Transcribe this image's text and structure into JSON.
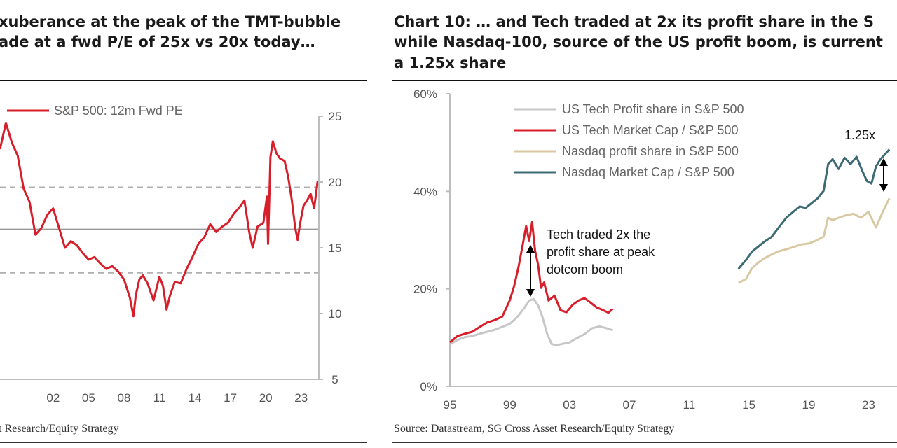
{
  "left_panel": {
    "title_lines": [
      "xuberance at the peak of the TMT-bubble",
      "ade at a fwd P/E of 25x vs 20x today…"
    ],
    "source": "t Research/Equity Strategy"
  },
  "right_panel": {
    "title_lines": [
      "Chart 10: … and Tech traded at 2x its profit share in the S",
      "while Nasdaq-100, source of the US profit boom, is current",
      "a 1.25x share"
    ],
    "source": "Source: Datastream, SG Cross Asset Research/Equity Strategy"
  },
  "chart_data": [
    {
      "type": "line",
      "legend": [
        "S&P 500: 12m Fwd PE"
      ],
      "x_ticks": [
        "02",
        "05",
        "08",
        "11",
        "14",
        "17",
        "20",
        "23"
      ],
      "y_ticks": [
        "25",
        "20",
        "15",
        "10",
        "5"
      ],
      "ylim": [
        5,
        25
      ],
      "xlim": [
        1997.5,
        2024.5
      ],
      "reference_lines": {
        "mean": 16.4,
        "upper": 19.6,
        "lower": 13.1
      },
      "colors": {
        "series": "#d71f2b",
        "mean": "#9a9a9a",
        "band": "#b0b0b0"
      },
      "series": [
        {
          "name": "S&P 500: 12m Fwd PE",
          "x": [
            1997.5,
            1998.0,
            1998.5,
            1999.0,
            1999.5,
            2000.0,
            2000.5,
            2001.0,
            2001.5,
            2002.0,
            2002.5,
            2003.0,
            2003.5,
            2004.0,
            2004.5,
            2005.0,
            2005.5,
            2006.0,
            2006.5,
            2007.0,
            2007.5,
            2008.0,
            2008.5,
            2008.8,
            2009.0,
            2009.3,
            2009.6,
            2010.0,
            2010.5,
            2011.0,
            2011.3,
            2011.6,
            2011.9,
            2012.3,
            2012.8,
            2013.3,
            2013.8,
            2014.3,
            2014.8,
            2015.3,
            2015.8,
            2016.3,
            2016.8,
            2017.3,
            2017.8,
            2018.2,
            2018.6,
            2018.9,
            2019.3,
            2019.8,
            2020.1,
            2020.2,
            2020.4,
            2020.6,
            2020.9,
            2021.2,
            2021.6,
            2021.9,
            2022.2,
            2022.5,
            2022.7,
            2022.9,
            2023.2,
            2023.5,
            2023.8,
            2024.1,
            2024.4
          ],
          "y": [
            22.5,
            24.5,
            23.0,
            22.0,
            19.5,
            18.5,
            16.0,
            16.5,
            17.5,
            18.0,
            16.5,
            15.0,
            15.5,
            15.2,
            14.6,
            14.1,
            14.3,
            13.8,
            13.4,
            13.6,
            13.2,
            12.6,
            11.2,
            9.8,
            11.4,
            12.6,
            12.9,
            12.3,
            11.0,
            12.8,
            12.1,
            10.3,
            11.4,
            12.4,
            12.3,
            13.4,
            14.3,
            15.3,
            15.8,
            16.8,
            16.2,
            16.6,
            16.9,
            17.6,
            18.1,
            18.6,
            16.2,
            15.0,
            16.6,
            16.9,
            18.9,
            15.3,
            21.9,
            23.1,
            22.2,
            21.8,
            21.6,
            20.4,
            18.7,
            16.5,
            15.6,
            16.8,
            18.2,
            18.6,
            19.1,
            18.0,
            20.1
          ]
        }
      ]
    },
    {
      "type": "line",
      "legend": [
        "US Tech Profit share in S&P 500",
        "US Tech Market Cap / S&P 500",
        "Nasdaq profit share in S&P 500",
        "Nasdaq Market Cap / S&P 500"
      ],
      "x_ticks": [
        "95",
        "99",
        "03",
        "07",
        "11",
        "15",
        "19",
        "23"
      ],
      "y_ticks": [
        "60%",
        "40%",
        "20%",
        "0%"
      ],
      "ylim": [
        0,
        60
      ],
      "xlim": [
        1995,
        2025
      ],
      "annotations": [
        "Tech traded 2x the",
        "profit share at peak",
        "dotcom boom",
        "1.25x"
      ],
      "series": [
        {
          "name": "US Tech Profit share in S&P 500",
          "color": "#c7c7c7",
          "x": [
            1995.0,
            1995.5,
            1996.0,
            1996.5,
            1997.0,
            1997.5,
            1998.0,
            1998.5,
            1999.0,
            1999.5,
            2000.0,
            2000.3,
            2000.6,
            2000.9,
            2001.2,
            2001.5,
            2001.8,
            2002.1,
            2002.5,
            2003.0,
            2003.5,
            2004.0,
            2004.5,
            2005.0,
            2005.5,
            2005.9
          ],
          "y": [
            8.6,
            9.5,
            10.1,
            10.3,
            10.8,
            11.2,
            11.6,
            12.2,
            12.8,
            14.2,
            16.2,
            17.6,
            17.9,
            16.6,
            14.1,
            10.8,
            8.7,
            8.4,
            8.7,
            9.0,
            9.9,
            10.7,
            11.9,
            12.3,
            11.9,
            11.5
          ]
        },
        {
          "name": "US Tech Market Cap / S&P 500",
          "color": "#d71f2b",
          "x": [
            1995.0,
            1995.5,
            1996.0,
            1996.5,
            1997.0,
            1997.5,
            1998.0,
            1998.5,
            1999.0,
            1999.3,
            1999.6,
            1999.9,
            2000.1,
            2000.3,
            2000.5,
            2000.7,
            2000.9,
            2001.1,
            2001.3,
            2001.6,
            2002.0,
            2002.4,
            2002.8,
            2003.2,
            2003.6,
            2004.0,
            2004.4,
            2004.8,
            2005.2,
            2005.6,
            2005.9
          ],
          "y": [
            9.0,
            10.3,
            10.8,
            11.2,
            12.2,
            13.1,
            13.6,
            14.3,
            17.6,
            20.6,
            24.6,
            29.5,
            32.9,
            29.8,
            33.7,
            27.8,
            24.9,
            20.2,
            21.3,
            17.6,
            18.6,
            15.6,
            15.2,
            16.7,
            17.6,
            18.1,
            17.2,
            16.2,
            15.7,
            15.1,
            15.9
          ]
        },
        {
          "name": "Nasdaq profit share in S&P 500",
          "color": "#d9c9a3",
          "x": [
            2014.3,
            2014.8,
            2015.2,
            2015.6,
            2016.0,
            2016.5,
            2017.0,
            2017.5,
            2018.0,
            2018.5,
            2019.0,
            2019.5,
            2020.0,
            2020.3,
            2020.6,
            2021.0,
            2021.5,
            2022.0,
            2022.5,
            2023.0,
            2023.5,
            2024.0,
            2024.4
          ],
          "y": [
            21.2,
            22.0,
            24.2,
            25.3,
            26.2,
            27.0,
            27.7,
            28.1,
            28.6,
            29.1,
            29.3,
            29.9,
            30.7,
            34.6,
            34.1,
            34.6,
            35.1,
            35.4,
            34.6,
            35.8,
            32.6,
            36.1,
            38.6
          ]
        },
        {
          "name": "Nasdaq Market Cap / S&P 500",
          "color": "#3d6b75",
          "x": [
            2014.3,
            2014.8,
            2015.2,
            2015.6,
            2016.0,
            2016.5,
            2017.0,
            2017.5,
            2018.0,
            2018.4,
            2018.8,
            2019.2,
            2019.6,
            2020.0,
            2020.3,
            2020.6,
            2021.0,
            2021.4,
            2021.8,
            2022.2,
            2022.6,
            2022.9,
            2023.2,
            2023.5,
            2023.8,
            2024.1,
            2024.4
          ],
          "y": [
            24.1,
            25.9,
            27.6,
            28.6,
            29.6,
            30.6,
            32.6,
            34.6,
            35.9,
            36.9,
            36.6,
            37.6,
            38.6,
            40.1,
            45.6,
            46.6,
            44.6,
            46.9,
            45.6,
            47.1,
            44.1,
            42.1,
            41.6,
            45.1,
            46.6,
            47.6,
            48.6
          ]
        }
      ]
    }
  ]
}
